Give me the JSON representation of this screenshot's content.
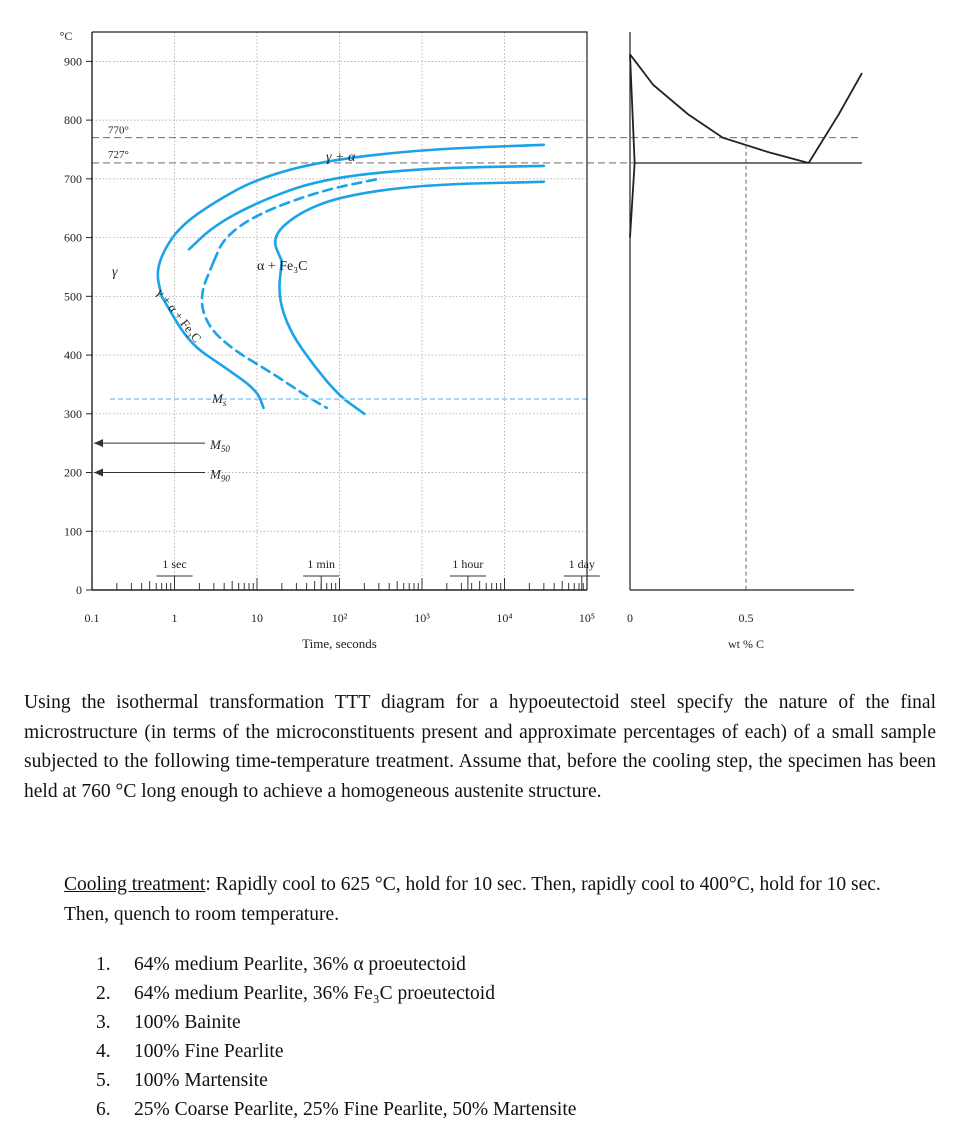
{
  "chart_data": {
    "type": "line",
    "title": "",
    "xlabel": "Time, seconds",
    "ylabel": "°C",
    "x_scale": "log",
    "xlim": [
      0.1,
      100000
    ],
    "ylim": [
      0,
      950
    ],
    "x_ticks": [
      {
        "value": 0.1,
        "label": "0.1"
      },
      {
        "value": 1,
        "label": "1"
      },
      {
        "value": 10,
        "label": "10"
      },
      {
        "value": 100,
        "label": "10²"
      },
      {
        "value": 1000,
        "label": "10³"
      },
      {
        "value": 10000,
        "label": "10⁴"
      },
      {
        "value": 100000,
        "label": "10⁵"
      }
    ],
    "y_ticks": [
      0,
      100,
      200,
      300,
      400,
      500,
      600,
      700,
      800,
      900
    ],
    "time_markers": [
      {
        "label": "1 sec",
        "value": 1
      },
      {
        "label": "1 min",
        "value": 60
      },
      {
        "label": "1 hour",
        "value": 3600
      },
      {
        "label": "1 day",
        "value": 86400
      }
    ],
    "reference_lines": [
      {
        "label": "770°",
        "y": 770
      },
      {
        "label": "727°",
        "y": 727
      }
    ],
    "series": [
      {
        "style": "solid",
        "points": [
          [
            0.7,
            500
          ],
          [
            0.6,
            540
          ],
          [
            0.75,
            580
          ],
          [
            1.2,
            620
          ],
          [
            3,
            660
          ],
          [
            10,
            700
          ],
          [
            60,
            730
          ],
          [
            1000,
            750
          ],
          [
            30000,
            758
          ]
        ]
      },
      {
        "style": "solid",
        "points": [
          [
            1.5,
            580
          ],
          [
            3,
            620
          ],
          [
            10,
            660
          ],
          [
            60,
            700
          ],
          [
            1000,
            718
          ],
          [
            30000,
            722
          ]
        ]
      },
      {
        "style": "dashed",
        "points": [
          [
            3,
            560
          ],
          [
            4,
            600
          ],
          [
            10,
            640
          ],
          [
            60,
            680
          ],
          [
            300,
            700
          ]
        ]
      },
      {
        "style": "solid",
        "points": [
          [
            20,
            560
          ],
          [
            15,
            600
          ],
          [
            30,
            640
          ],
          [
            100,
            670
          ],
          [
            1000,
            690
          ],
          [
            30000,
            695
          ]
        ]
      },
      {
        "style": "solid",
        "points": [
          [
            0.7,
            500
          ],
          [
            1.5,
            420
          ],
          [
            4,
            380
          ],
          [
            10,
            340
          ],
          [
            12,
            310
          ]
        ]
      },
      {
        "style": "dashed",
        "points": [
          [
            3,
            560
          ],
          [
            2,
            500
          ],
          [
            2.5,
            450
          ],
          [
            5,
            410
          ],
          [
            15,
            370
          ],
          [
            40,
            330
          ],
          [
            70,
            310
          ]
        ]
      },
      {
        "style": "solid",
        "points": [
          [
            20,
            560
          ],
          [
            18,
            500
          ],
          [
            25,
            440
          ],
          [
            50,
            380
          ],
          [
            100,
            330
          ],
          [
            200,
            300
          ]
        ]
      }
    ],
    "martensite_lines": [
      {
        "label": "Ms",
        "y": 325
      },
      {
        "label": "M50",
        "y": 250
      },
      {
        "label": "M90",
        "y": 200
      }
    ],
    "region_labels": {
      "austenite": "γ",
      "gamma_alpha": "γ + α",
      "alpha_fe3c": "α + Fe₃C",
      "gamma_alpha_fe3c": "γ + α + Fe₃C"
    },
    "phase_diagram": {
      "xlabel": "wt % C",
      "xlim": [
        0,
        1.0
      ],
      "x_ticks": [
        {
          "value": 0,
          "label": "0"
        },
        {
          "value": 0.5,
          "label": "0.5"
        }
      ],
      "eutectoid_temperature": 727,
      "eutectoid_composition": 0.77,
      "composition_marker": 0.5,
      "a3_line": [
        [
          0,
          912
        ],
        [
          0.1,
          860
        ],
        [
          0.25,
          810
        ],
        [
          0.4,
          770
        ],
        [
          0.6,
          745
        ],
        [
          0.77,
          727
        ]
      ],
      "acm_line": [
        [
          0.77,
          727
        ],
        [
          0.9,
          810
        ],
        [
          1.0,
          880
        ]
      ],
      "alpha_solvus": [
        [
          0,
          912
        ],
        [
          0.02,
          727
        ],
        [
          0,
          600
        ]
      ]
    }
  },
  "question": {
    "text": "Using the isothermal transformation TTT diagram for a hypoeutectoid steel specify the nature of the final microstructure (in terms of the microconstituents present and approximate percentages of each) of a small sample subjected to the following time-temperature treatment. Assume that, before the cooling step, the specimen has been held at 760 °C long enough to achieve a homogeneous austenite structure."
  },
  "treatment": {
    "heading": "Cooling treatment",
    "text": ": Rapidly cool to 625 °C, hold for 10 sec. Then, rapidly cool to 400°C, hold for 10 sec. Then, quench to room temperature."
  },
  "options": [
    {
      "num": "1.",
      "text": "64% medium Pearlite, 36% α proeutectoid"
    },
    {
      "num": "2.",
      "text": "64% medium Pearlite, 36% Fe₃C proeutectoid"
    },
    {
      "num": "3.",
      "text": "100% Bainite"
    },
    {
      "num": "4.",
      "text": "100% Fine Pearlite"
    },
    {
      "num": "5.",
      "text": "100% Martensite"
    },
    {
      "num": "6.",
      "text": "25% Coarse Pearlite, 25% Fine Pearlite, 50% Martensite"
    }
  ],
  "colors": {
    "curve": "#1aa3e8",
    "ms_line": "#8fd3f4",
    "axis": "#222222",
    "grid": "#9a9a9a"
  }
}
